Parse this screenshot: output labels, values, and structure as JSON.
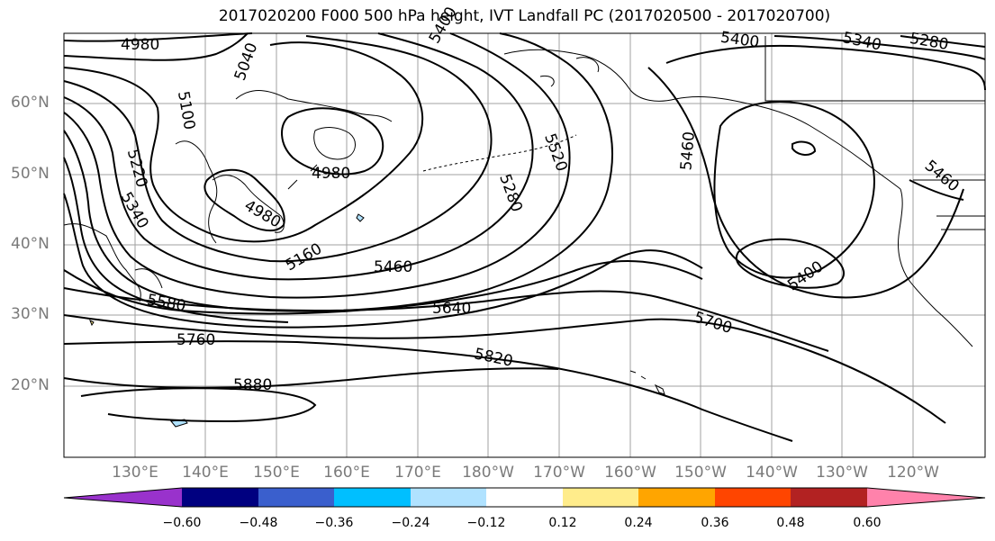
{
  "title": "2017020200 F000 500 hPa height, IVT Landfall PC (2017020500 - 2017020700)",
  "lat_labels": [
    "60°N",
    "50°N",
    "40°N",
    "30°N",
    "20°N"
  ],
  "lon_labels": [
    "130°E",
    "140°E",
    "150°E",
    "160°E",
    "170°E",
    "180°W",
    "170°W",
    "160°W",
    "150°W",
    "140°W",
    "130°W",
    "120°W"
  ],
  "contour_labels": [
    "4980",
    "5040",
    "5100",
    "5220",
    "5340",
    "4980",
    "4980",
    "5160",
    "5460",
    "5580",
    "5640",
    "5760",
    "5880",
    "5820",
    "5700",
    "5400",
    "5460",
    "5520",
    "5280",
    "5460",
    "5400",
    "5340",
    "5280",
    "5400"
  ],
  "colorbar": {
    "colors": [
      "#9932cc",
      "#000080",
      "#3a5fcd",
      "#00bfff",
      "#b0e2ff",
      "#ffffff",
      "#ffec8b",
      "#ffa500",
      "#ff4500",
      "#b22222",
      "#ff82ab"
    ],
    "ticks": [
      "−0.60",
      "−0.48",
      "−0.36",
      "−0.24",
      "−0.12",
      "0.12",
      "0.24",
      "0.36",
      "0.48",
      "0.60"
    ]
  }
}
